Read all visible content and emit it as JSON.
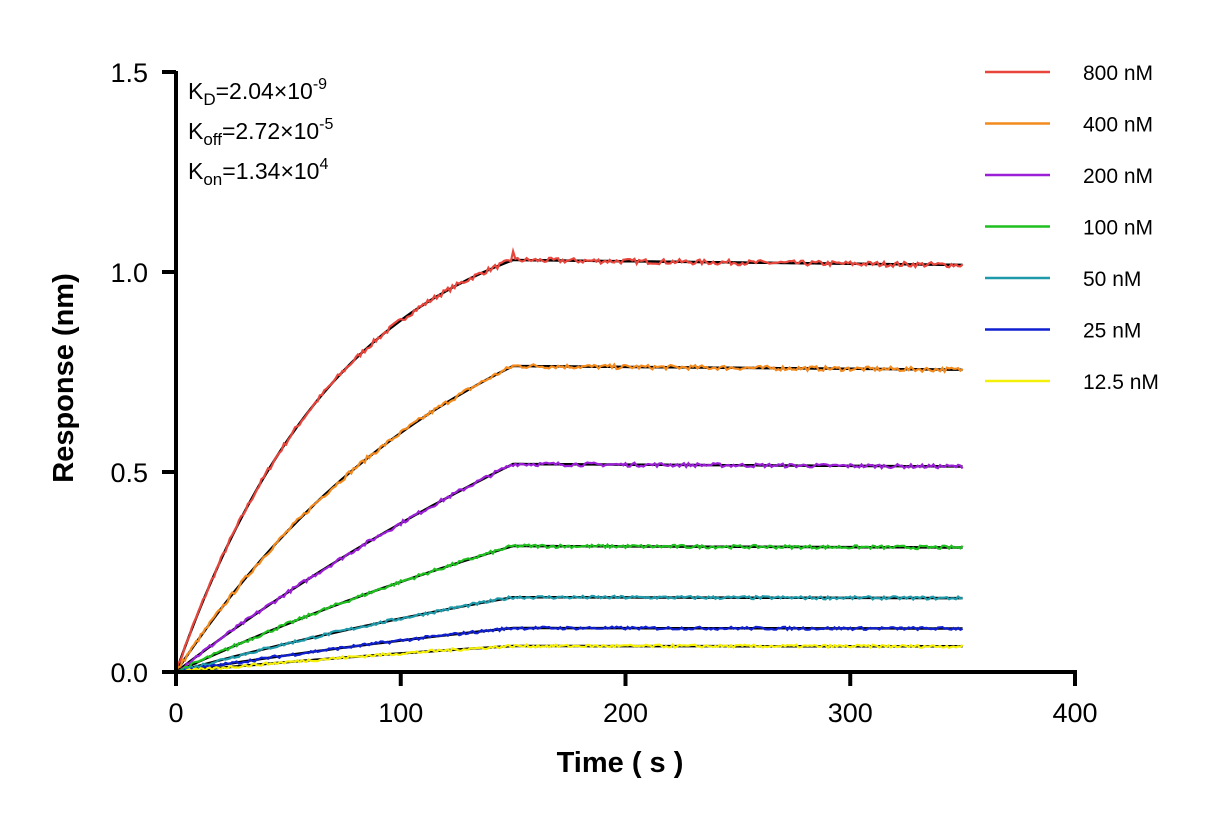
{
  "chart_data": {
    "type": "line",
    "title": "",
    "xlabel": "Time ( s )",
    "ylabel": "Response (nm)",
    "xlim": [
      0,
      400
    ],
    "ylim": [
      0,
      1.5
    ],
    "x_ticks": [
      "0",
      "100",
      "200",
      "300",
      "400"
    ],
    "y_ticks": [
      "0.0",
      "0.5",
      "1.0",
      "1.5"
    ],
    "grid": false,
    "legend_position": "right",
    "association_end_s": 150,
    "dissociation_end_s": 350,
    "series": [
      {
        "name": "800 nM",
        "color": "#e8463c",
        "plateau": 1.03
      },
      {
        "name": "400 nM",
        "color": "#f28a1e",
        "plateau": 0.765
      },
      {
        "name": "200 nM",
        "color": "#9b1fd6",
        "plateau": 0.52
      },
      {
        "name": "100 nM",
        "color": "#1fbf1f",
        "plateau": 0.315
      },
      {
        "name": "50 nM",
        "color": "#1f9aab",
        "plateau": 0.187
      },
      {
        "name": "25 nM",
        "color": "#1020d0",
        "plateau": 0.11
      },
      {
        "name": "12.5 nM",
        "color": "#f5f00a",
        "plateau": 0.065
      }
    ],
    "annotations": [
      {
        "base": "K",
        "sub": "D",
        "rest": "=2.04×10",
        "sup": "-9"
      },
      {
        "base": "K",
        "sub": "off",
        "rest": "=2.72×10",
        "sup": "-5"
      },
      {
        "base": "K",
        "sub": "on",
        "rest": "=1.34×10",
        "sup": "4"
      }
    ]
  }
}
